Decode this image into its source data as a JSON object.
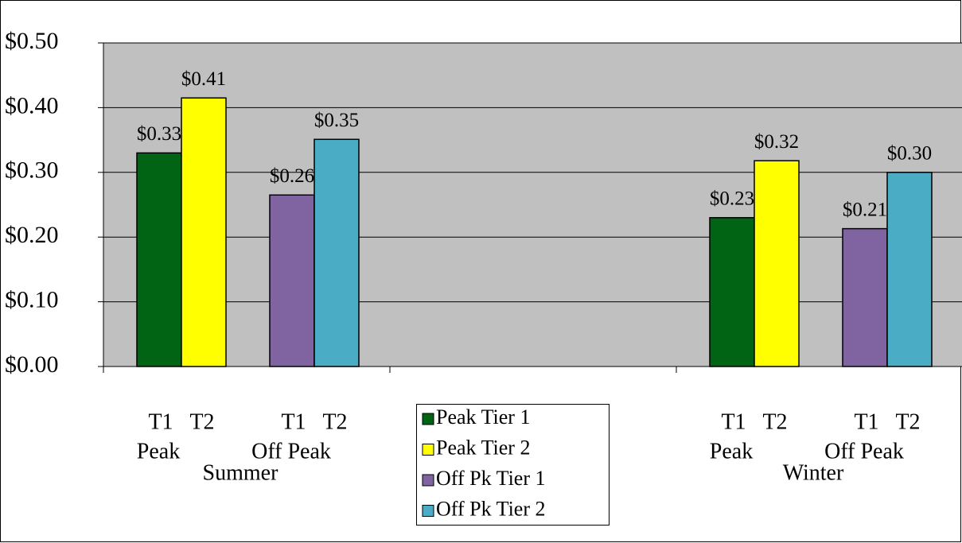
{
  "chart_data": {
    "type": "bar",
    "categories": [
      "Summer",
      null,
      "Winter"
    ],
    "pair_labels": [
      "Peak",
      "Off Peak"
    ],
    "tier_labels": [
      "T1",
      "T2"
    ],
    "series": [
      {
        "name": "Peak Tier 1",
        "color": "#006414",
        "pair": 0,
        "values": [
          0.33,
          null,
          0.23
        ],
        "value_labels": [
          "$0.33",
          null,
          "$0.23"
        ]
      },
      {
        "name": "Peak Tier 2",
        "color": "#ffff00",
        "pair": 0,
        "values": [
          0.415,
          null,
          0.318
        ],
        "value_labels": [
          "$0.41",
          null,
          "$0.32"
        ]
      },
      {
        "name": "Off Pk Tier 1",
        "color": "#8064a2",
        "pair": 1,
        "values": [
          0.265,
          null,
          0.213
        ],
        "value_labels": [
          "$0.26",
          null,
          "$0.21"
        ]
      },
      {
        "name": "Off Pk Tier 2",
        "color": "#4bacc6",
        "pair": 1,
        "values": [
          0.351,
          null,
          0.3
        ],
        "value_labels": [
          "$0.35",
          null,
          "$0.30"
        ]
      }
    ],
    "ylim": [
      0,
      0.5
    ],
    "yticks": [
      {
        "value": 0,
        "label": "$0.00"
      },
      {
        "value": 0.1,
        "label": "$0.10"
      },
      {
        "value": 0.2,
        "label": "$0.20"
      },
      {
        "value": 0.3,
        "label": "$0.30"
      },
      {
        "value": 0.4,
        "label": "$0.40"
      },
      {
        "value": 0.5,
        "label": "$0.50"
      }
    ],
    "grid": true,
    "legend": "bottom"
  }
}
